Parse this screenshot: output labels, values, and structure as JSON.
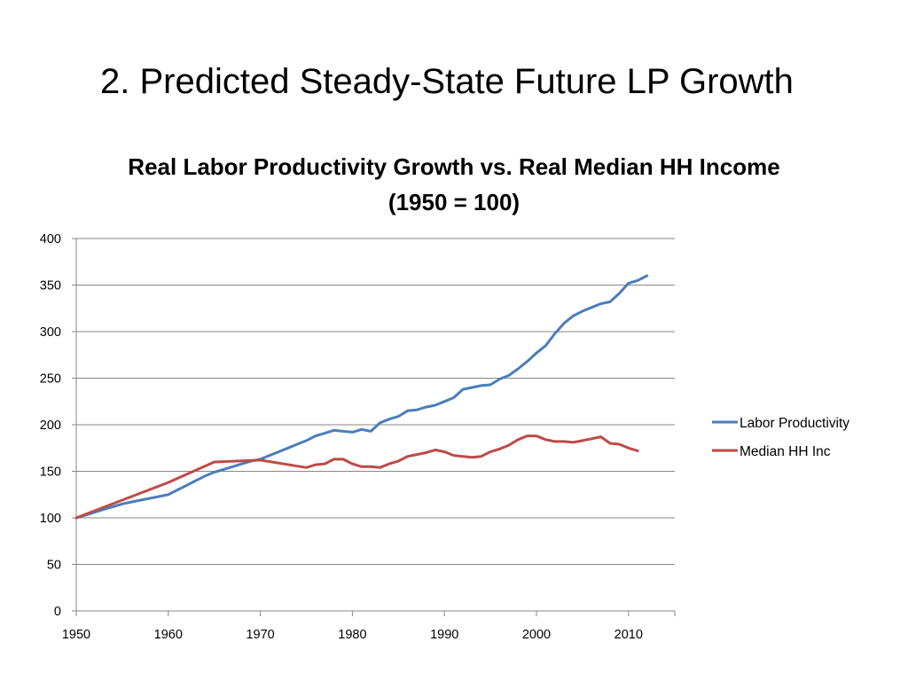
{
  "slide": {
    "title": "2. Predicted Steady-State Future LP Growth"
  },
  "chart_data": {
    "type": "line",
    "title": "Real Labor Productivity Growth vs. Real Median HH Income (1950 = 100)",
    "xlabel": "",
    "ylabel": "",
    "xlim": [
      1950,
      2015
    ],
    "ylim": [
      0,
      400
    ],
    "x_ticks": [
      1950,
      1960,
      1970,
      1980,
      1990,
      2000,
      2010
    ],
    "y_ticks": [
      0,
      50,
      100,
      150,
      200,
      250,
      300,
      350,
      400
    ],
    "grid": "horizontal",
    "legend": "right",
    "series": [
      {
        "name": "Labor Productivity",
        "color": "#4a7ebb",
        "x": [
          1950,
          1951,
          1952,
          1953,
          1954,
          1955,
          1956,
          1957,
          1958,
          1959,
          1960,
          1961,
          1962,
          1963,
          1964,
          1965,
          1966,
          1967,
          1968,
          1969,
          1970,
          1971,
          1972,
          1973,
          1974,
          1975,
          1976,
          1977,
          1978,
          1979,
          1980,
          1981,
          1982,
          1983,
          1984,
          1985,
          1986,
          1987,
          1988,
          1989,
          1990,
          1991,
          1992,
          1993,
          1994,
          1995,
          1996,
          1997,
          1998,
          1999,
          2000,
          2001,
          2002,
          2003,
          2004,
          2005,
          2006,
          2007,
          2008,
          2009,
          2010,
          2011,
          2012
        ],
        "values": [
          100,
          103,
          106,
          109,
          112,
          115,
          117,
          119,
          121,
          123,
          125,
          130,
          135,
          140,
          145,
          149,
          152,
          155,
          158,
          161,
          163,
          167,
          171,
          175,
          179,
          183,
          188,
          191,
          194,
          193,
          192,
          195,
          193,
          202,
          206,
          209,
          215,
          216,
          219,
          221,
          225,
          229,
          238,
          240,
          242,
          243,
          249,
          253,
          260,
          268,
          277,
          285,
          298,
          309,
          317,
          322,
          326,
          330,
          332,
          341,
          352,
          355,
          360
        ]
      },
      {
        "name": "Median HH Inc",
        "color": "#be4b48",
        "x": [
          1950,
          1955,
          1960,
          1965,
          1970,
          1975,
          1976,
          1977,
          1978,
          1979,
          1980,
          1981,
          1982,
          1983,
          1984,
          1985,
          1986,
          1987,
          1988,
          1989,
          1990,
          1991,
          1992,
          1993,
          1994,
          1995,
          1996,
          1997,
          1998,
          1999,
          2000,
          2001,
          2002,
          2003,
          2004,
          2005,
          2006,
          2007,
          2008,
          2009,
          2010,
          2011
        ],
        "values": [
          100,
          119,
          138,
          160,
          162,
          154,
          157,
          158,
          163,
          163,
          158,
          155,
          155,
          154,
          158,
          161,
          166,
          168,
          170,
          173,
          171,
          167,
          166,
          165,
          166,
          171,
          174,
          178,
          184,
          188,
          188,
          184,
          182,
          182,
          181,
          183,
          185,
          187,
          180,
          179,
          175,
          172
        ]
      }
    ]
  }
}
